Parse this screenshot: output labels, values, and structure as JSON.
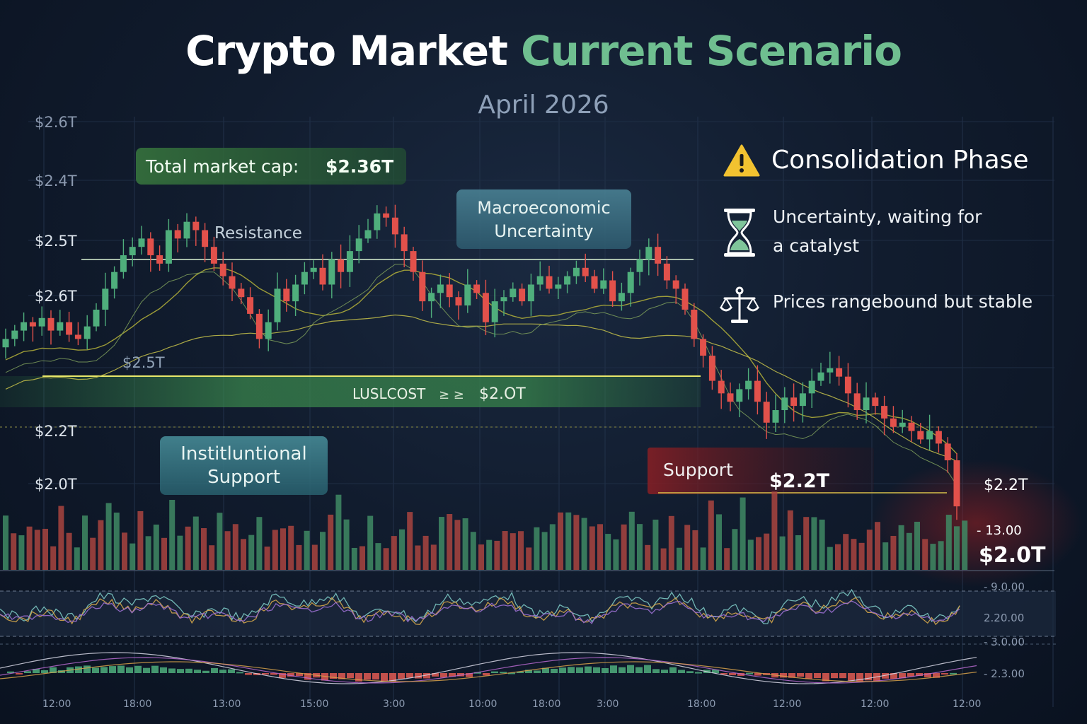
{
  "title": {
    "main": "Crypto Market",
    "accent": "Current Scenario"
  },
  "subtitle": "April 2026",
  "callouts": {
    "market_cap_label": "Total market cap:",
    "market_cap_value": "$2.36T",
    "macro_line1": "Macroeconomic",
    "macro_line2": "Uncertainty",
    "institutional_line1": "Institluntional",
    "institutional_line2": "Support",
    "resistance": "Resistance",
    "support": "Support",
    "support_value": "$2.2T",
    "band_label": "LUSLCOST",
    "band_value": "$2.OT",
    "band_marks": "≥ ≥",
    "mid_level": "$2.5T"
  },
  "panel": {
    "heading": "Consolidation Phase",
    "item1_line1": "Uncertainty, waiting for",
    "item1_line2": "a catalyst",
    "item2": "Prices rangebound but stable",
    "icons": [
      "warning-icon",
      "hourglass-icon",
      "balance-scale-icon"
    ]
  },
  "colors": {
    "up": "#4fae7c",
    "down": "#e2514b",
    "accent": "#6fbf90",
    "ma": "#b5b33a",
    "bg": "#111c2e"
  },
  "chart_data": {
    "type": "candlestick",
    "y_axis_labels": [
      "$2.6T",
      "$2.4T",
      "$2.5T",
      "$2.6T",
      "$2.2T",
      "$2.0T"
    ],
    "right_labels": [
      "$2.2T",
      "- 13.00",
      "$2.0T"
    ],
    "indicator_labels": [
      "- 9.0.00",
      "2.20.00",
      "- 3.0.00",
      "- 2.3.00"
    ],
    "x_axis_labels": [
      "12:00",
      "18:00",
      "13:00",
      "15:00",
      "3:00",
      "10:00",
      "18:00",
      "3:00",
      "18:00",
      "12:00",
      "12:00",
      "12:00"
    ],
    "closes": [
      2.4,
      2.42,
      2.44,
      2.43,
      2.45,
      2.42,
      2.44,
      2.41,
      2.4,
      2.43,
      2.47,
      2.52,
      2.56,
      2.6,
      2.62,
      2.64,
      2.6,
      2.58,
      2.66,
      2.64,
      2.68,
      2.66,
      2.62,
      2.58,
      2.55,
      2.52,
      2.5,
      2.46,
      2.4,
      2.44,
      2.52,
      2.49,
      2.53,
      2.56,
      2.57,
      2.53,
      2.59,
      2.56,
      2.61,
      2.64,
      2.66,
      2.7,
      2.69,
      2.65,
      2.61,
      2.56,
      2.49,
      2.51,
      2.53,
      2.5,
      2.48,
      2.53,
      2.51,
      2.44,
      2.49,
      2.5,
      2.52,
      2.49,
      2.53,
      2.55,
      2.52,
      2.53,
      2.55,
      2.57,
      2.55,
      2.52,
      2.54,
      2.49,
      2.51,
      2.56,
      2.59,
      2.62,
      2.58,
      2.54,
      2.52,
      2.47,
      2.4,
      2.36,
      2.3,
      2.27,
      2.25,
      2.28,
      2.3,
      2.25,
      2.2,
      2.23,
      2.26,
      2.24,
      2.27,
      2.3,
      2.32,
      2.33,
      2.31,
      2.27,
      2.23,
      2.26,
      2.24,
      2.21,
      2.19,
      2.2,
      2.18,
      2.16,
      2.18,
      2.15,
      2.11,
      2.0
    ]
  }
}
